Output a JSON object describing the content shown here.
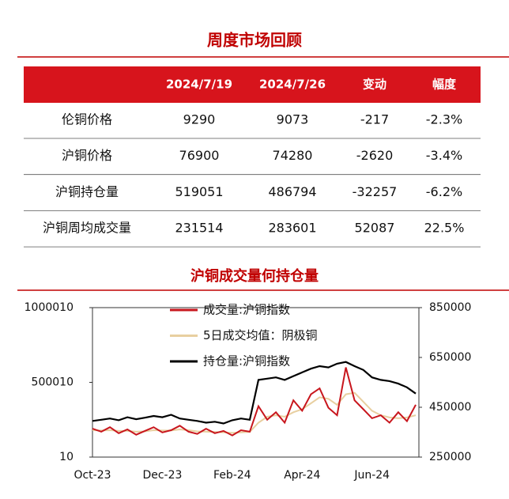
{
  "header": {
    "title": "周度市场回顾"
  },
  "table": {
    "columns": [
      "2024/7/19",
      "2024/7/26",
      "变动",
      "幅度"
    ],
    "rows": [
      [
        "伦铜价格",
        "9290",
        "9073",
        "-217",
        "-2.3%"
      ],
      [
        "沪铜价格",
        "76900",
        "74280",
        "-2620",
        "-3.4%"
      ],
      [
        "沪铜持仓量",
        "519051",
        "486794",
        "-32257",
        "-6.2%"
      ],
      [
        "沪铜周均成交量",
        "231514",
        "283601",
        "52087",
        "22.5%"
      ]
    ]
  },
  "chart_data": {
    "type": "line",
    "title": "沪铜成交量何持仓量",
    "categories": [
      "Oct-23",
      null,
      null,
      null,
      null,
      null,
      null,
      null,
      "Dec-23",
      null,
      null,
      null,
      null,
      null,
      null,
      null,
      "Feb-24",
      null,
      null,
      null,
      null,
      null,
      null,
      null,
      "Apr-24",
      null,
      null,
      null,
      null,
      null,
      null,
      null,
      "Jun-24",
      null,
      null,
      null,
      null,
      null
    ],
    "ylim": [
      10,
      1000010
    ],
    "yticks": [
      10,
      500010,
      1000010
    ],
    "y2lim": [
      250000,
      850000
    ],
    "y2ticks": [
      250000,
      450000,
      650000,
      850000
    ],
    "legend": "top-left",
    "series": [
      {
        "name": "成交量:沪铜指数",
        "color": "#c8161d",
        "values": [
          190000,
          170000,
          200000,
          160000,
          185000,
          150000,
          175000,
          200000,
          165000,
          180000,
          210000,
          170000,
          155000,
          190000,
          160000,
          175000,
          145000,
          180000,
          170000,
          340000,
          250000,
          300000,
          230000,
          380000,
          310000,
          420000,
          460000,
          330000,
          280000,
          600000,
          380000,
          320000,
          260000,
          280000,
          230000,
          300000,
          240000,
          350000
        ]
      },
      {
        "name": "5日成交均值：阴极铜",
        "color": "#e8cfa0",
        "values": [
          180000,
          178000,
          180000,
          175000,
          175000,
          170000,
          172000,
          180000,
          178000,
          178000,
          185000,
          180000,
          172000,
          170000,
          168000,
          165000,
          162000,
          165000,
          168000,
          230000,
          270000,
          280000,
          270000,
          300000,
          320000,
          360000,
          400000,
          390000,
          350000,
          420000,
          430000,
          370000,
          310000,
          280000,
          265000,
          260000,
          265000,
          280000
        ]
      },
      {
        "name": "持仓量:沪铜指数",
        "color": "#000000",
        "axis": "y2",
        "values": [
          395000,
          400000,
          405000,
          398000,
          410000,
          402000,
          408000,
          415000,
          410000,
          420000,
          405000,
          400000,
          395000,
          388000,
          392000,
          385000,
          398000,
          405000,
          400000,
          560000,
          565000,
          570000,
          560000,
          575000,
          590000,
          605000,
          615000,
          610000,
          625000,
          632000,
          615000,
          600000,
          570000,
          560000,
          555000,
          545000,
          530000,
          505000
        ]
      }
    ]
  }
}
